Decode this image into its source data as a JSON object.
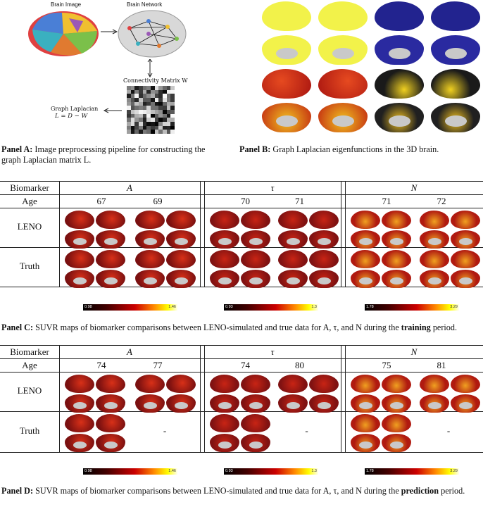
{
  "panelA": {
    "brain_image_label": "Brain Image",
    "brain_network_label": "Brain Network",
    "connectivity_label": "Connectivity Matrix W",
    "laplacian_label": "Graph Laplacian",
    "laplacian_formula": "L = D − W",
    "caption_bold": "Panel A:",
    "caption_text": " Image preprocessing pipeline for constructing the graph Laplacian matrix L."
  },
  "panelB": {
    "caption_bold": "Panel B:",
    "caption_text": " Graph Laplacian eigenfunctions in the 3D brain."
  },
  "panelC": {
    "header_biomarker": "Biomarker",
    "header_age": "Age",
    "biomarkers": [
      "A",
      "τ",
      "N"
    ],
    "ages": [
      "67",
      "69",
      "70",
      "71",
      "71",
      "72"
    ],
    "row_labels": [
      "LENO",
      "Truth"
    ],
    "colorbars": [
      {
        "min": "0.98",
        "max": "1.46"
      },
      {
        "min": "0.93",
        "max": "1.3"
      },
      {
        "min": "1.78",
        "max": "3.29"
      }
    ],
    "caption_bold": "Panel C:",
    "caption_text": " SUVR maps of biomarker comparisons between LENO-simulated and true data for A, τ, and N during the ",
    "caption_bold2": "training",
    "caption_end": " period."
  },
  "panelD": {
    "header_biomarker": "Biomarker",
    "header_age": "Age",
    "biomarkers": [
      "A",
      "τ",
      "N"
    ],
    "ages": [
      "74",
      "77",
      "74",
      "80",
      "75",
      "81"
    ],
    "row_labels": [
      "LENO",
      "Truth"
    ],
    "missing": "-",
    "colorbars": [
      {
        "min": "0.98",
        "max": "1.46"
      },
      {
        "min": "0.93",
        "max": "1.3"
      },
      {
        "min": "1.78",
        "max": "3.29"
      }
    ],
    "caption_bold": "Panel D:",
    "caption_text": " SUVR maps of biomarker comparisons between LENO-simulated and true data for A, τ, and N during the ",
    "caption_bold2": "prediction",
    "caption_end": " period."
  }
}
